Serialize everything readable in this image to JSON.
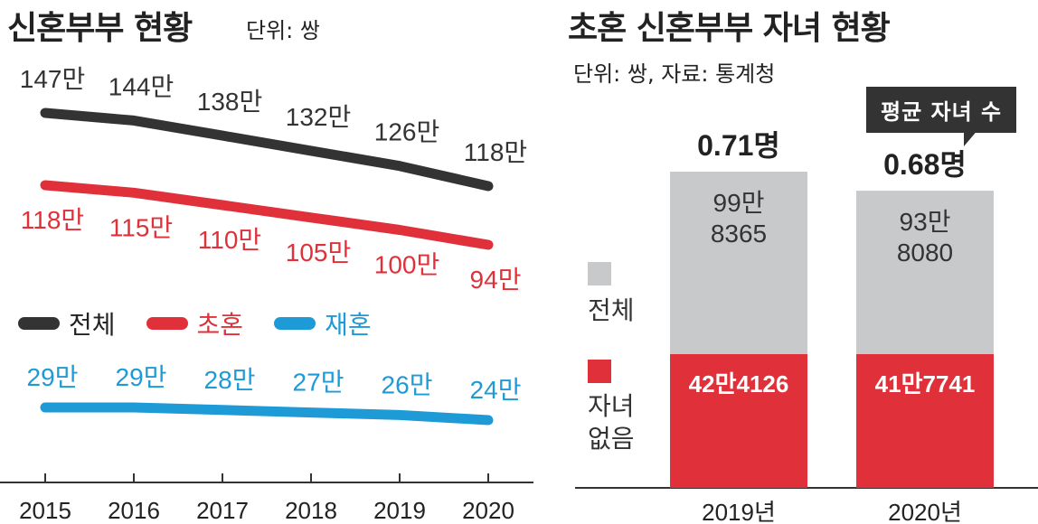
{
  "left": {
    "title": "신혼부부 현황",
    "unit": "단위: 쌍",
    "legend": [
      {
        "label": "전체",
        "color": "#333333"
      },
      {
        "label": "초혼",
        "color": "#e0313a"
      },
      {
        "label": "재혼",
        "color": "#1e9ad6"
      }
    ]
  },
  "right": {
    "title": "초혼 신혼부부 자녀 현황",
    "unit": "단위: 쌍, 자료: 통계청",
    "callout": "평균 자녀 수",
    "legend": [
      {
        "label": "전체",
        "color": "#c8c9cb"
      },
      {
        "label": "자녀 없음",
        "line1": "자녀",
        "line2": "없음",
        "color": "#e0313a"
      }
    ]
  },
  "chart_data": [
    {
      "type": "line",
      "title": "신혼부부 현황",
      "x": [
        "2015",
        "2016",
        "2017",
        "2018",
        "2019",
        "2020"
      ],
      "series": [
        {
          "name": "전체",
          "color": "#333333",
          "values": [
            147,
            144,
            138,
            132,
            126,
            118
          ],
          "labels": [
            "147만",
            "144만",
            "138만",
            "132만",
            "126만",
            "118만"
          ]
        },
        {
          "name": "초혼",
          "color": "#e0313a",
          "values": [
            118,
            115,
            110,
            105,
            100,
            94
          ],
          "labels": [
            "118만",
            "115만",
            "110만",
            "105만",
            "100만",
            "94만"
          ]
        },
        {
          "name": "재혼",
          "color": "#1e9ad6",
          "values": [
            29,
            29,
            28,
            27,
            26,
            24
          ],
          "labels": [
            "29만",
            "29만",
            "28만",
            "27만",
            "26만",
            "24만"
          ]
        }
      ]
    },
    {
      "type": "bar",
      "stacked": true,
      "title": "초혼 신혼부부 자녀 현황",
      "categories": [
        "2019년",
        "2020년"
      ],
      "avg_children": [
        "0.71명",
        "0.68명"
      ],
      "series": [
        {
          "name": "자녀 없음",
          "color": "#e0313a",
          "values": [
            424126,
            417741
          ],
          "labels": [
            "42만4126",
            "41만7741"
          ]
        },
        {
          "name": "전체",
          "color": "#c8c9cb",
          "values": [
            998365,
            938080
          ],
          "labels_line1": [
            "99만",
            "93만"
          ],
          "labels_line2": [
            "8365",
            "8080"
          ]
        }
      ]
    }
  ]
}
